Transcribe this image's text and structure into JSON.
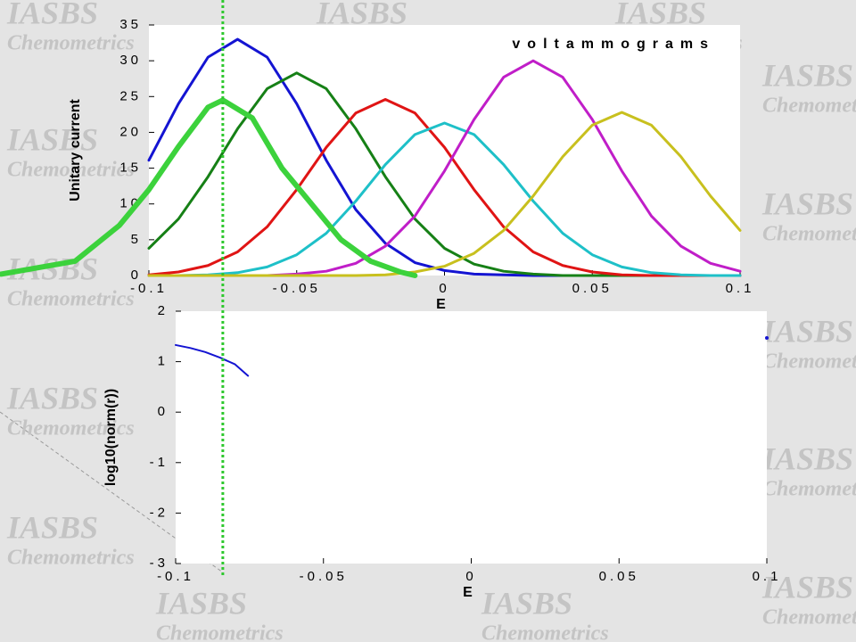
{
  "chart_data": [
    {
      "type": "line",
      "title": "voltammograms",
      "x_label": "E",
      "y_label": "Unitary current",
      "xlim": [
        -0.1,
        0.1
      ],
      "xticks": [
        -0.1,
        -0.05,
        0,
        0.05,
        0.1
      ],
      "ylim": [
        0,
        35
      ],
      "yticks": [
        0,
        5,
        10,
        15,
        20,
        25,
        30,
        35
      ],
      "grid": false,
      "cursor_x": -0.075,
      "x": [
        -0.1,
        -0.09,
        -0.08,
        -0.07,
        -0.06,
        -0.05,
        -0.04,
        -0.03,
        -0.02,
        -0.01,
        0,
        0.01,
        0.02,
        0.03,
        0.04,
        0.05,
        0.06,
        0.07,
        0.08,
        0.09,
        0.1
      ],
      "series": [
        {
          "color": "#1414d2",
          "width": 3,
          "values": [
            16.1,
            24.0,
            30.5,
            33,
            30.5,
            24.0,
            16.1,
            9.2,
            4.5,
            1.8,
            0.7,
            0.2,
            0.1,
            0,
            0,
            0,
            0,
            0,
            0,
            0,
            0
          ]
        },
        {
          "color": "#168016",
          "width": 3,
          "values": [
            3.8,
            7.9,
            13.8,
            20.5,
            26.1,
            28.3,
            26.1,
            20.5,
            13.8,
            7.9,
            3.8,
            1.6,
            0.6,
            0.2,
            0,
            0,
            0,
            0,
            0,
            0,
            0
          ]
        },
        {
          "color": "#e01414",
          "width": 3,
          "values": [
            0.1,
            0.5,
            1.4,
            3.3,
            6.8,
            12.0,
            17.9,
            22.7,
            24.6,
            22.7,
            17.9,
            12.0,
            6.8,
            3.3,
            1.4,
            0.5,
            0.1,
            0,
            0,
            0,
            0
          ]
        },
        {
          "color": "#1ec0c8",
          "width": 3,
          "values": [
            0,
            0,
            0.1,
            0.4,
            1.2,
            2.9,
            5.9,
            10.4,
            15.5,
            19.7,
            21.3,
            19.7,
            15.5,
            10.4,
            5.9,
            2.9,
            1.2,
            0.4,
            0.1,
            0,
            0
          ]
        },
        {
          "color": "#c01ec8",
          "width": 3,
          "values": [
            0,
            0,
            0,
            0,
            0,
            0.2,
            0.6,
            1.7,
            4.1,
            8.3,
            14.6,
            21.8,
            27.7,
            30,
            27.7,
            21.8,
            14.6,
            8.3,
            4.1,
            1.7,
            0.6
          ]
        },
        {
          "color": "#c8c01e",
          "width": 3,
          "values": [
            0,
            0,
            0,
            0,
            0,
            0,
            0,
            0,
            0.1,
            0.5,
            1.3,
            3.1,
            6.3,
            11.1,
            16.6,
            21.0,
            22.8,
            21.0,
            16.6,
            11.1,
            6.3
          ]
        },
        {
          "color": "#3cd23c",
          "width": 6,
          "x": [
            -0.15,
            -0.125,
            -0.11,
            -0.1,
            -0.09,
            -0.08,
            -0.075,
            -0.065,
            -0.055,
            -0.045,
            -0.035,
            -0.025,
            -0.015,
            -0.01
          ],
          "values": [
            0.2,
            2,
            7,
            12,
            18,
            23.5,
            24.5,
            22,
            15,
            10,
            5,
            2,
            0.5,
            0
          ]
        }
      ]
    },
    {
      "type": "line",
      "x_label": "E",
      "y_label": "log10(norm(r))",
      "xlim": [
        -0.1,
        0.1
      ],
      "xticks": [
        -0.1,
        -0.05,
        0,
        0.05,
        0.1
      ],
      "ylim": [
        -3,
        2
      ],
      "yticks": [
        -3,
        -2,
        -1,
        0,
        1,
        2
      ],
      "grid": false,
      "series": [
        {
          "color": "#1414d2",
          "width": 2,
          "x": [
            -0.1,
            -0.095,
            -0.09,
            -0.085,
            -0.08,
            -0.0755
          ],
          "values": [
            1.33,
            1.27,
            1.19,
            1.08,
            0.95,
            0.72
          ]
        },
        {
          "color": "#1414d2",
          "width": 2,
          "x": [
            0.1
          ],
          "values": [
            1.47
          ]
        }
      ]
    }
  ],
  "watermark": {
    "name": "IASBS",
    "subtitle": "Chemometrics"
  }
}
